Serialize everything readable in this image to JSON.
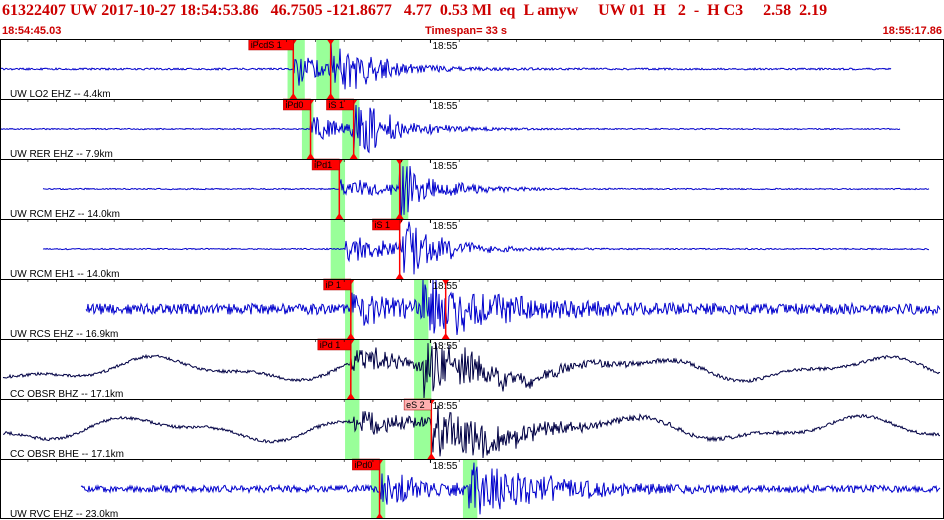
{
  "header": {
    "title": "61322407 UW 2017-10-27 18:54:53.86   46.7505 -121.8677   4.77  0.53 Ml  eq  L amyw     UW 01  H   2  -  H C3     2.58  2.19",
    "start_time": "18:54:45.03",
    "timespan": "Timespan=  33 s",
    "end_time": "18:55:17.86"
  },
  "colors": {
    "trace_blue": "#0000cc",
    "trace_dark": "#000044",
    "pick_red": "#ff0000",
    "pick_pink": "#ffb0b0",
    "window_green": "#99ff99",
    "title_red": "#cc0000"
  },
  "chart_data": {
    "type": "line",
    "x_range": [
      "18:54:45.03",
      "18:55:17.86"
    ],
    "time_marker_label": "18:55",
    "traces": [
      {
        "label": "UW LO2 EHZ -- 4.4km",
        "color": "trace_blue",
        "style": "quake",
        "t_start": 0,
        "t_end": 31.0,
        "t_onset": 10.2,
        "t_s": 11.5,
        "amp": 1.0,
        "noise": 0.03,
        "windows": [
          [
            10.0,
            10.6
          ],
          [
            11.0,
            11.8
          ]
        ],
        "picks": [
          {
            "label": "iPcdS 1",
            "t": 10.2,
            "kind": "red"
          },
          {
            "label": "",
            "t": 11.5,
            "kind": "red"
          }
        ]
      },
      {
        "label": "UW RER EHZ -- 7.9km",
        "color": "trace_blue",
        "style": "quake",
        "t_start": 0,
        "t_end": 31.3,
        "t_onset": 10.8,
        "t_s": 12.3,
        "amp": 0.9,
        "noise": 0.02,
        "windows": [
          [
            10.5,
            10.9
          ],
          [
            11.9,
            12.5
          ]
        ],
        "picks": [
          {
            "label": "iPd0",
            "t": 10.8,
            "kind": "red"
          },
          {
            "label": "iS 1",
            "t": 12.3,
            "kind": "red"
          }
        ]
      },
      {
        "label": "UW RCM EHZ -- 14.0km",
        "color": "trace_blue",
        "style": "quake",
        "t_start": 1.5,
        "t_end": 32.3,
        "t_onset": 11.8,
        "t_s": 13.9,
        "amp": 0.8,
        "noise": 0.02,
        "windows": [
          [
            11.5,
            12.0
          ],
          [
            13.6,
            14.2
          ]
        ],
        "picks": [
          {
            "label": "iPd1",
            "t": 11.8,
            "kind": "red"
          },
          {
            "label": "",
            "t": 13.9,
            "kind": "red"
          }
        ]
      },
      {
        "label": "UW RCM EH1 -- 14.0km",
        "color": "trace_blue",
        "style": "quake",
        "t_start": 1.5,
        "t_end": 32.3,
        "t_onset": 12.0,
        "t_s": 13.9,
        "amp": 0.9,
        "noise": 0.02,
        "windows": [
          [
            11.5,
            12.0
          ]
        ],
        "picks": [
          {
            "label": "iS 1",
            "t": 13.9,
            "kind": "red"
          }
        ]
      },
      {
        "label": "UW RCS EHZ -- 16.9km",
        "color": "trace_blue",
        "style": "noisy",
        "t_start": 3.0,
        "t_end": 32.7,
        "t_onset": 12.2,
        "t_s": 14.7,
        "amp": 0.9,
        "noise": 0.18,
        "windows": [
          [
            12.0,
            12.3
          ],
          [
            14.4,
            14.9
          ]
        ],
        "picks": [
          {
            "label": "iP 1",
            "t": 12.2,
            "kind": "red"
          },
          {
            "label": "",
            "t": 15.5,
            "kind": "red"
          }
        ]
      },
      {
        "label": "CC OBSR BHZ -- 17.1km",
        "color": "trace_dark",
        "style": "broadband",
        "t_start": 0.1,
        "t_end": 32.7,
        "t_onset": 12.2,
        "t_s": 14.7,
        "amp": 0.9,
        "noise": 0.05,
        "windows": [
          [
            12.0,
            12.5
          ],
          [
            14.4,
            15.0
          ]
        ],
        "picks": [
          {
            "label": "iPd 1",
            "t": 12.2,
            "kind": "red"
          }
        ]
      },
      {
        "label": "CC OBSR BHE -- 17.1km",
        "color": "trace_dark",
        "style": "broadband",
        "t_start": 0.1,
        "t_end": 32.7,
        "t_onset": 12.3,
        "t_s": 15.0,
        "amp": 0.9,
        "noise": 0.05,
        "windows": [
          [
            12.0,
            12.5
          ],
          [
            14.4,
            15.0
          ]
        ],
        "picks": [
          {
            "label": "eS 2",
            "t": 15.0,
            "kind": "pink"
          }
        ]
      },
      {
        "label": "UW RVC EHZ -- 23.0km",
        "color": "trace_blue",
        "style": "noisy",
        "t_start": 2.8,
        "t_end": 32.7,
        "t_onset": 13.2,
        "t_s": 16.3,
        "amp": 0.9,
        "noise": 0.12,
        "windows": [
          [
            12.9,
            13.4
          ],
          [
            16.1,
            16.6
          ]
        ],
        "picks": [
          {
            "label": "iPd0",
            "t": 13.2,
            "kind": "red"
          }
        ]
      }
    ]
  }
}
